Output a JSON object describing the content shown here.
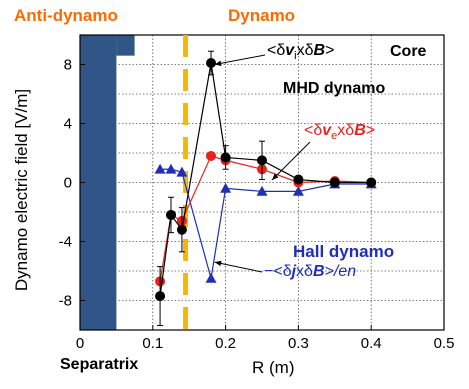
{
  "headers": {
    "anti_dynamo": "Anti-dynamo",
    "dynamo": "Dynamo"
  },
  "labels": {
    "separatrix": "Separatrix",
    "core": "Core",
    "mhd_dynamo": "MHD dynamo",
    "hall_dynamo": "Hall dynamo"
  },
  "series_labels": {
    "vi": {
      "prefix": "<δ",
      "v": "v",
      "sub": "i",
      "mid": "xδ",
      "B": "B",
      "suffix": ">"
    },
    "ve": {
      "prefix": "<δ",
      "v": "v",
      "sub": "e",
      "mid": "xδ",
      "B": "B",
      "suffix": ">"
    },
    "j": {
      "prefix": "−<δ",
      "j": "j",
      "mid": "xδ",
      "B": "B",
      "suffix": ">/en"
    }
  },
  "colors": {
    "accent_orange": "#ff6a00",
    "separatrix_line": "#f5b800",
    "core_block": "#2f5686",
    "black_series": "#000000",
    "red_series": "#e8231e",
    "blue_series": "#1f2fb8"
  },
  "chart_data": {
    "type": "line",
    "xlabel": "R (m)",
    "ylabel": "Dynamo electric field [V/m]",
    "xlim": [
      0,
      0.5
    ],
    "ylim": [
      -10,
      10
    ],
    "xticks": [
      "0",
      "0.1",
      "0.2",
      "0.3",
      "0.4",
      "0.5"
    ],
    "yticks": [
      "8",
      "4",
      "0",
      "-4",
      "-8"
    ],
    "grid": true,
    "separatrix_x": 0.145,
    "wall_region_x": [
      0,
      0.05
    ],
    "series": [
      {
        "marker": "circle",
        "color": "#000000",
        "x": [
          0.11,
          0.125,
          0.14,
          0.18,
          0.2,
          0.25,
          0.3,
          0.35,
          0.4
        ],
        "y": [
          -7.7,
          -2.2,
          -3.2,
          8.1,
          1.7,
          1.5,
          0.2,
          0.0,
          0.0
        ],
        "err": [
          2.0,
          1.2,
          1.5,
          0.8,
          0.8,
          1.3,
          0.2,
          0.2,
          0.2
        ]
      },
      {
        "marker": "circle",
        "color": "#e8231e",
        "x": [
          0.11,
          0.125,
          0.14,
          0.18,
          0.2,
          0.25,
          0.3,
          0.35,
          0.4
        ],
        "y": [
          -6.7,
          -2.2,
          -2.6,
          1.8,
          1.5,
          0.9,
          0.0,
          0.1,
          0.0
        ],
        "err": []
      },
      {
        "marker": "triangle",
        "color": "#1f2fb8",
        "x": [
          0.11,
          0.125,
          0.14,
          0.18,
          0.2,
          0.25,
          0.3,
          0.35,
          0.4
        ],
        "y": [
          0.9,
          0.9,
          0.7,
          -6.5,
          -0.4,
          -0.6,
          -0.6,
          -0.1,
          -0.1
        ],
        "err": []
      }
    ]
  }
}
